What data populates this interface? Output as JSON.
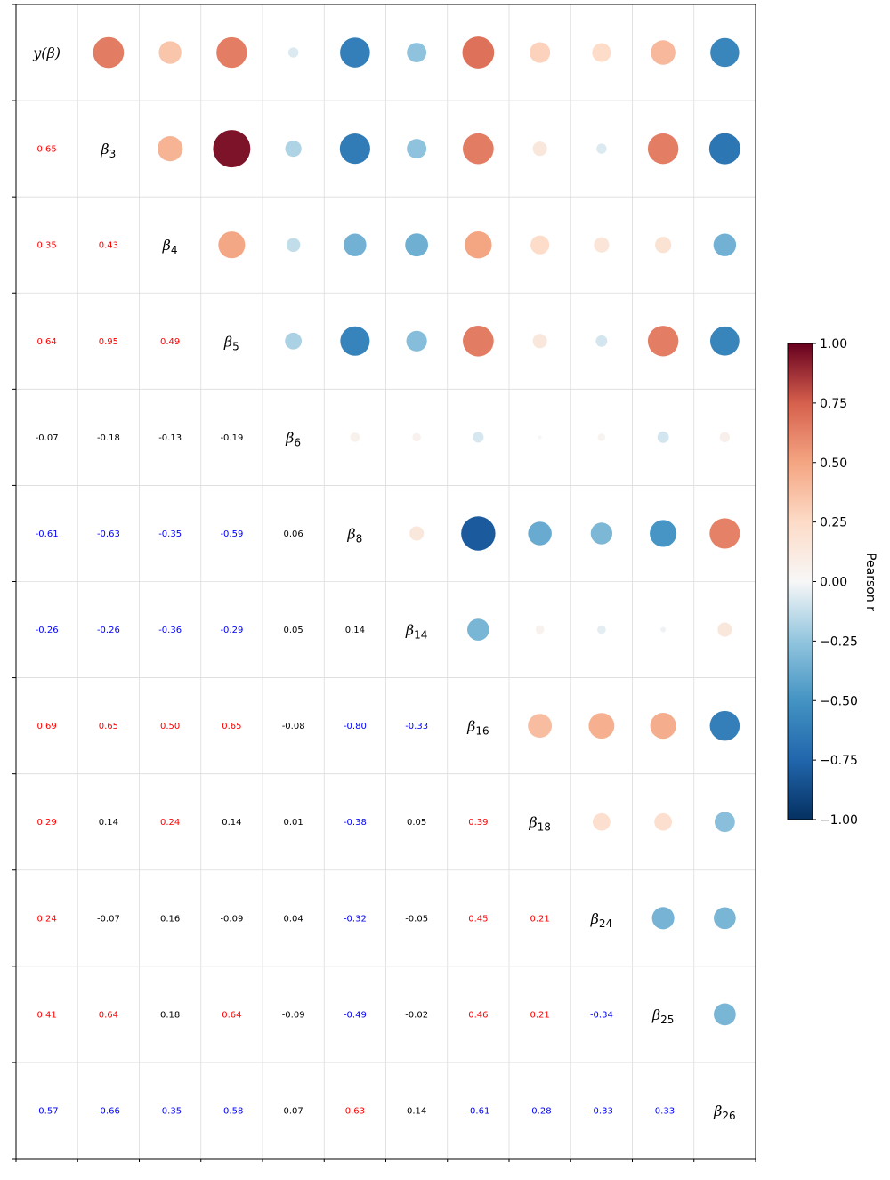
{
  "chart_data": {
    "type": "heatmap",
    "subtype": "correlation-matrix",
    "variables": [
      {
        "base": "y(β)",
        "sub": ""
      },
      {
        "base": "β",
        "sub": "3"
      },
      {
        "base": "β",
        "sub": "4"
      },
      {
        "base": "β",
        "sub": "5"
      },
      {
        "base": "β",
        "sub": "6"
      },
      {
        "base": "β",
        "sub": "8"
      },
      {
        "base": "β",
        "sub": "14"
      },
      {
        "base": "β",
        "sub": "16"
      },
      {
        "base": "β",
        "sub": "18"
      },
      {
        "base": "β",
        "sub": "24"
      },
      {
        "base": "β",
        "sub": "25"
      },
      {
        "base": "β",
        "sub": "26"
      }
    ],
    "lower_labels": [
      [],
      [
        "0.65"
      ],
      [
        "0.35",
        "0.43"
      ],
      [
        "0.64",
        "0.95",
        "0.49"
      ],
      [
        "-0.07",
        "-0.18",
        "-0.13",
        "-0.19"
      ],
      [
        "-0.61",
        "-0.63",
        "-0.35",
        "-0.59",
        "0.06"
      ],
      [
        "-0.26",
        "-0.26",
        "-0.36",
        "-0.29",
        "0.05",
        "0.14"
      ],
      [
        "0.69",
        "0.65",
        "0.50",
        "0.65",
        "-0.08",
        "-0.80",
        "-0.33"
      ],
      [
        "0.29",
        "0.14",
        "0.24",
        "0.14",
        "0.01",
        "-0.38",
        "0.05",
        "0.39"
      ],
      [
        "0.24",
        "-0.07",
        "0.16",
        "-0.09",
        "0.04",
        "-0.32",
        "-0.05",
        "0.45",
        "0.21"
      ],
      [
        "0.41",
        "0.64",
        "0.18",
        "0.64",
        "-0.09",
        "-0.49",
        "-0.02",
        "0.46",
        "0.21",
        "-0.34"
      ],
      [
        "-0.57",
        "-0.66",
        "-0.35",
        "-0.58",
        "0.07",
        "0.63",
        "0.14",
        "-0.61",
        "-0.28",
        "-0.33",
        "-0.33"
      ]
    ],
    "upper_display": "circle size and color proportional to r",
    "label_colors": {
      "positive": "#ff0000",
      "negative": "#0000ff",
      "neutral": "#000000"
    },
    "label_color_threshold": 0.2,
    "colorbar": {
      "label": "Pearson r",
      "range": [
        -1.0,
        1.0
      ],
      "ticks": [
        "1.00",
        "0.75",
        "0.50",
        "0.25",
        "0.00",
        "−0.25",
        "−0.50",
        "−0.75",
        "−1.00"
      ],
      "colormap": "RdBu_r"
    },
    "grid": true
  }
}
